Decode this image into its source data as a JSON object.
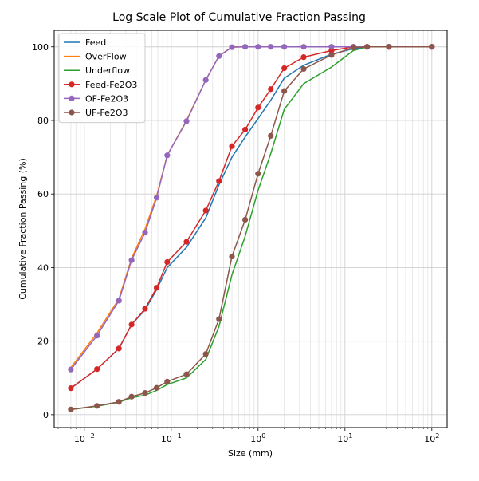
{
  "chart_data": {
    "type": "line",
    "title": "Log Scale Plot of Cumulative Fraction Passing",
    "xlabel": "Size (mm)",
    "ylabel": "Cumulative Fraction Passing (%)",
    "xscale": "log",
    "xlim": [
      0.0045,
      150
    ],
    "ylim": [
      -3.5,
      104.5
    ],
    "grid": "both (major and minor on x)",
    "legend_position": "top-left",
    "x_ticks": [
      {
        "value": 0.01,
        "base": "10",
        "exp": "−2"
      },
      {
        "value": 0.1,
        "base": "10",
        "exp": "−1"
      },
      {
        "value": 1,
        "base": "10",
        "exp": "0"
      },
      {
        "value": 10,
        "base": "10",
        "exp": "1"
      },
      {
        "value": 100,
        "base": "10",
        "exp": "2"
      }
    ],
    "y_ticks": [
      {
        "value": 0,
        "label": "0"
      },
      {
        "value": 20,
        "label": "20"
      },
      {
        "value": 40,
        "label": "40"
      },
      {
        "value": 60,
        "label": "60"
      },
      {
        "value": 80,
        "label": "80"
      },
      {
        "value": 100,
        "label": "100"
      }
    ],
    "x": [
      0.007,
      0.014,
      0.025,
      0.035,
      0.05,
      0.068,
      0.09,
      0.15,
      0.25,
      0.355,
      0.5,
      0.71,
      1.0,
      1.4,
      2.0,
      3.35,
      7.0,
      12.5,
      18.0,
      32.0,
      100.0
    ],
    "series": [
      {
        "name": "Feed",
        "color": "#1f77b4",
        "marker": "none",
        "values": [
          7.2,
          12.4,
          18.0,
          24.5,
          28.5,
          34.0,
          40.0,
          45.5,
          53.5,
          62.5,
          70.0,
          75.5,
          80.5,
          85.5,
          91.5,
          95.0,
          98.0,
          99.5,
          100,
          100,
          100
        ]
      },
      {
        "name": "OverFlow",
        "color": "#ff7f0e",
        "marker": "none",
        "values": [
          12.8,
          22.2,
          31.5,
          42.5,
          50.5,
          59.5,
          70.5,
          80.0,
          91.0,
          97.5,
          100,
          100,
          100,
          100,
          100,
          100,
          100,
          100,
          100,
          100,
          100
        ]
      },
      {
        "name": "Underflow",
        "color": "#2ca02c",
        "marker": "none",
        "values": [
          1.4,
          2.3,
          3.4,
          4.6,
          5.3,
          6.6,
          8.2,
          10.0,
          15.0,
          24.0,
          38.0,
          48.5,
          61.0,
          71.0,
          83.0,
          90.0,
          94.5,
          99.0,
          100,
          100,
          100
        ]
      },
      {
        "name": "Feed-Fe2O3",
        "color": "#d62728",
        "marker": "o",
        "values": [
          7.2,
          12.4,
          18.0,
          24.5,
          28.8,
          34.5,
          41.5,
          47.0,
          55.5,
          63.5,
          73.0,
          77.5,
          83.5,
          88.5,
          94.2,
          97.2,
          99.0,
          100,
          100,
          100,
          100
        ]
      },
      {
        "name": "OF-Fe2O3",
        "color": "#9467bd",
        "marker": "o",
        "values": [
          12.3,
          21.5,
          31.0,
          42.0,
          49.5,
          59.0,
          70.5,
          79.8,
          91.0,
          97.5,
          99.9,
          100,
          100,
          100,
          100,
          100,
          100,
          100,
          100,
          100,
          100
        ]
      },
      {
        "name": "UF-Fe2O3",
        "color": "#8c564b",
        "marker": "o",
        "values": [
          1.4,
          2.4,
          3.5,
          4.9,
          5.9,
          7.3,
          9.0,
          11.0,
          16.5,
          26.0,
          43.0,
          53.0,
          65.5,
          75.8,
          88.0,
          94.0,
          97.8,
          99.8,
          100,
          100,
          100
        ]
      }
    ]
  }
}
